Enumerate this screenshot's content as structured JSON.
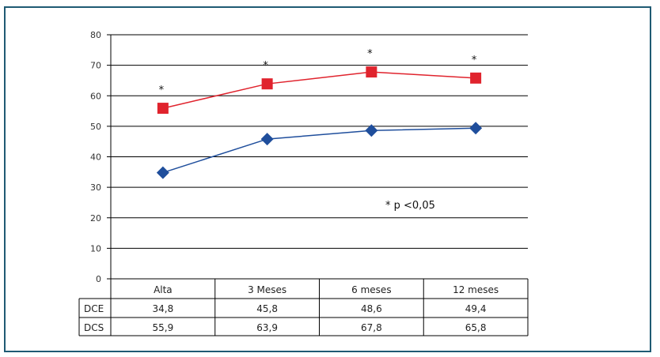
{
  "chart_data": {
    "type": "line",
    "categories": [
      "Alta",
      "3 Meses",
      "6 meses",
      "12 meses"
    ],
    "ylim": [
      0,
      80
    ],
    "yticks": [
      "0",
      "10",
      "20",
      "30",
      "40",
      "50",
      "60",
      "70",
      "80"
    ],
    "grid": true,
    "series": [
      {
        "name": "DCE",
        "values": [
          34.8,
          45.8,
          48.6,
          49.4
        ],
        "labels": [
          "34,8",
          "45,8",
          "48,6",
          "49,4"
        ],
        "color": "#1f4e9c",
        "marker": "diamond"
      },
      {
        "name": "DCS",
        "values": [
          55.9,
          63.9,
          67.8,
          65.8
        ],
        "labels": [
          "55,9",
          "63,9",
          "67,8",
          "65,8"
        ],
        "color": "#e0232d",
        "marker": "square"
      }
    ],
    "significance_marker": "*",
    "annotation": "* p <0,05"
  }
}
